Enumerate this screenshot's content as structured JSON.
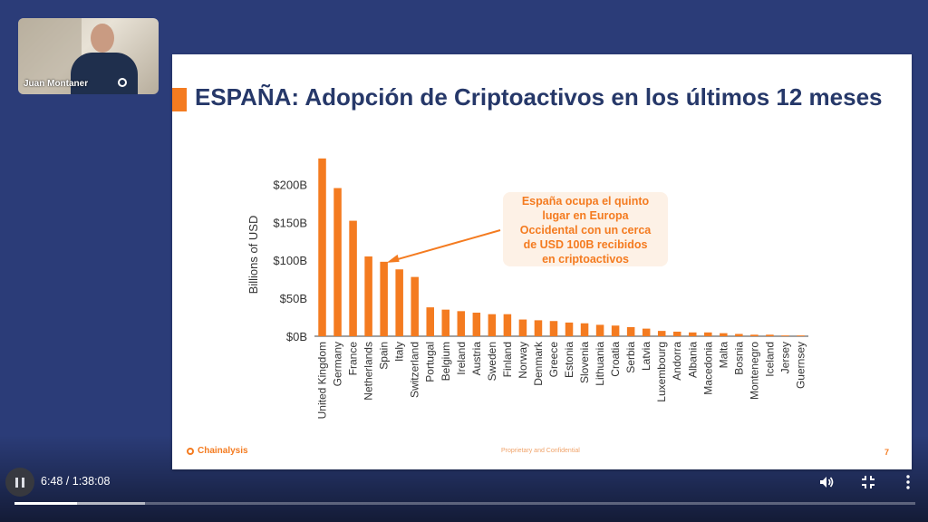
{
  "presenter": {
    "name": "Juan Montaner"
  },
  "slide": {
    "title": "ESPAÑA: Adopción de Criptoactivos en los últimos 12 meses",
    "callout_lines": [
      "España ocupa el quinto",
      "lugar en Europa",
      "Occidental con un cerca",
      "de USD 100B recibidos",
      "en criptoactivos"
    ],
    "footer": {
      "logo": "Chainalysis",
      "center": "Proprietary and Confidential",
      "page": "7"
    },
    "accent_color": "#f47b20",
    "title_color": "#263869"
  },
  "chart_data": {
    "type": "bar",
    "ylabel": "Billions of USD",
    "ylim": [
      0,
      235
    ],
    "yticks": [
      0,
      50,
      100,
      150,
      200
    ],
    "ytick_labels": [
      "$0B",
      "$50B",
      "$100B",
      "$150B",
      "$200B"
    ],
    "categories": [
      "United Kingdom",
      "Germany",
      "France",
      "Netherlands",
      "Spain",
      "Italy",
      "Switzerland",
      "Portugal",
      "Belgium",
      "Ireland",
      "Austria",
      "Sweden",
      "Finland",
      "Norway",
      "Denmark",
      "Greece",
      "Estonia",
      "Slovenia",
      "Lithuania",
      "Croatia",
      "Serbia",
      "Latvia",
      "Luxembourg",
      "Andorra",
      "Albania",
      "Macedonia",
      "Malta",
      "Bosnia",
      "Montenegro",
      "Iceland",
      "Jersey",
      "Guernsey"
    ],
    "values": [
      234,
      195,
      152,
      105,
      98,
      88,
      78,
      38,
      35,
      33,
      31,
      29,
      29,
      22,
      21,
      20,
      18,
      17,
      15,
      14,
      12,
      10,
      7,
      6,
      5,
      5,
      4,
      3,
      2,
      2,
      1,
      1
    ],
    "bar_color": "#f47b20"
  },
  "player": {
    "time": "6:48 / 1:38:08",
    "progress": 0.0693,
    "buffered": 0.145,
    "icons": [
      "pause-icon",
      "volume-icon",
      "exit-fullscreen-icon",
      "more-vert-icon"
    ]
  }
}
